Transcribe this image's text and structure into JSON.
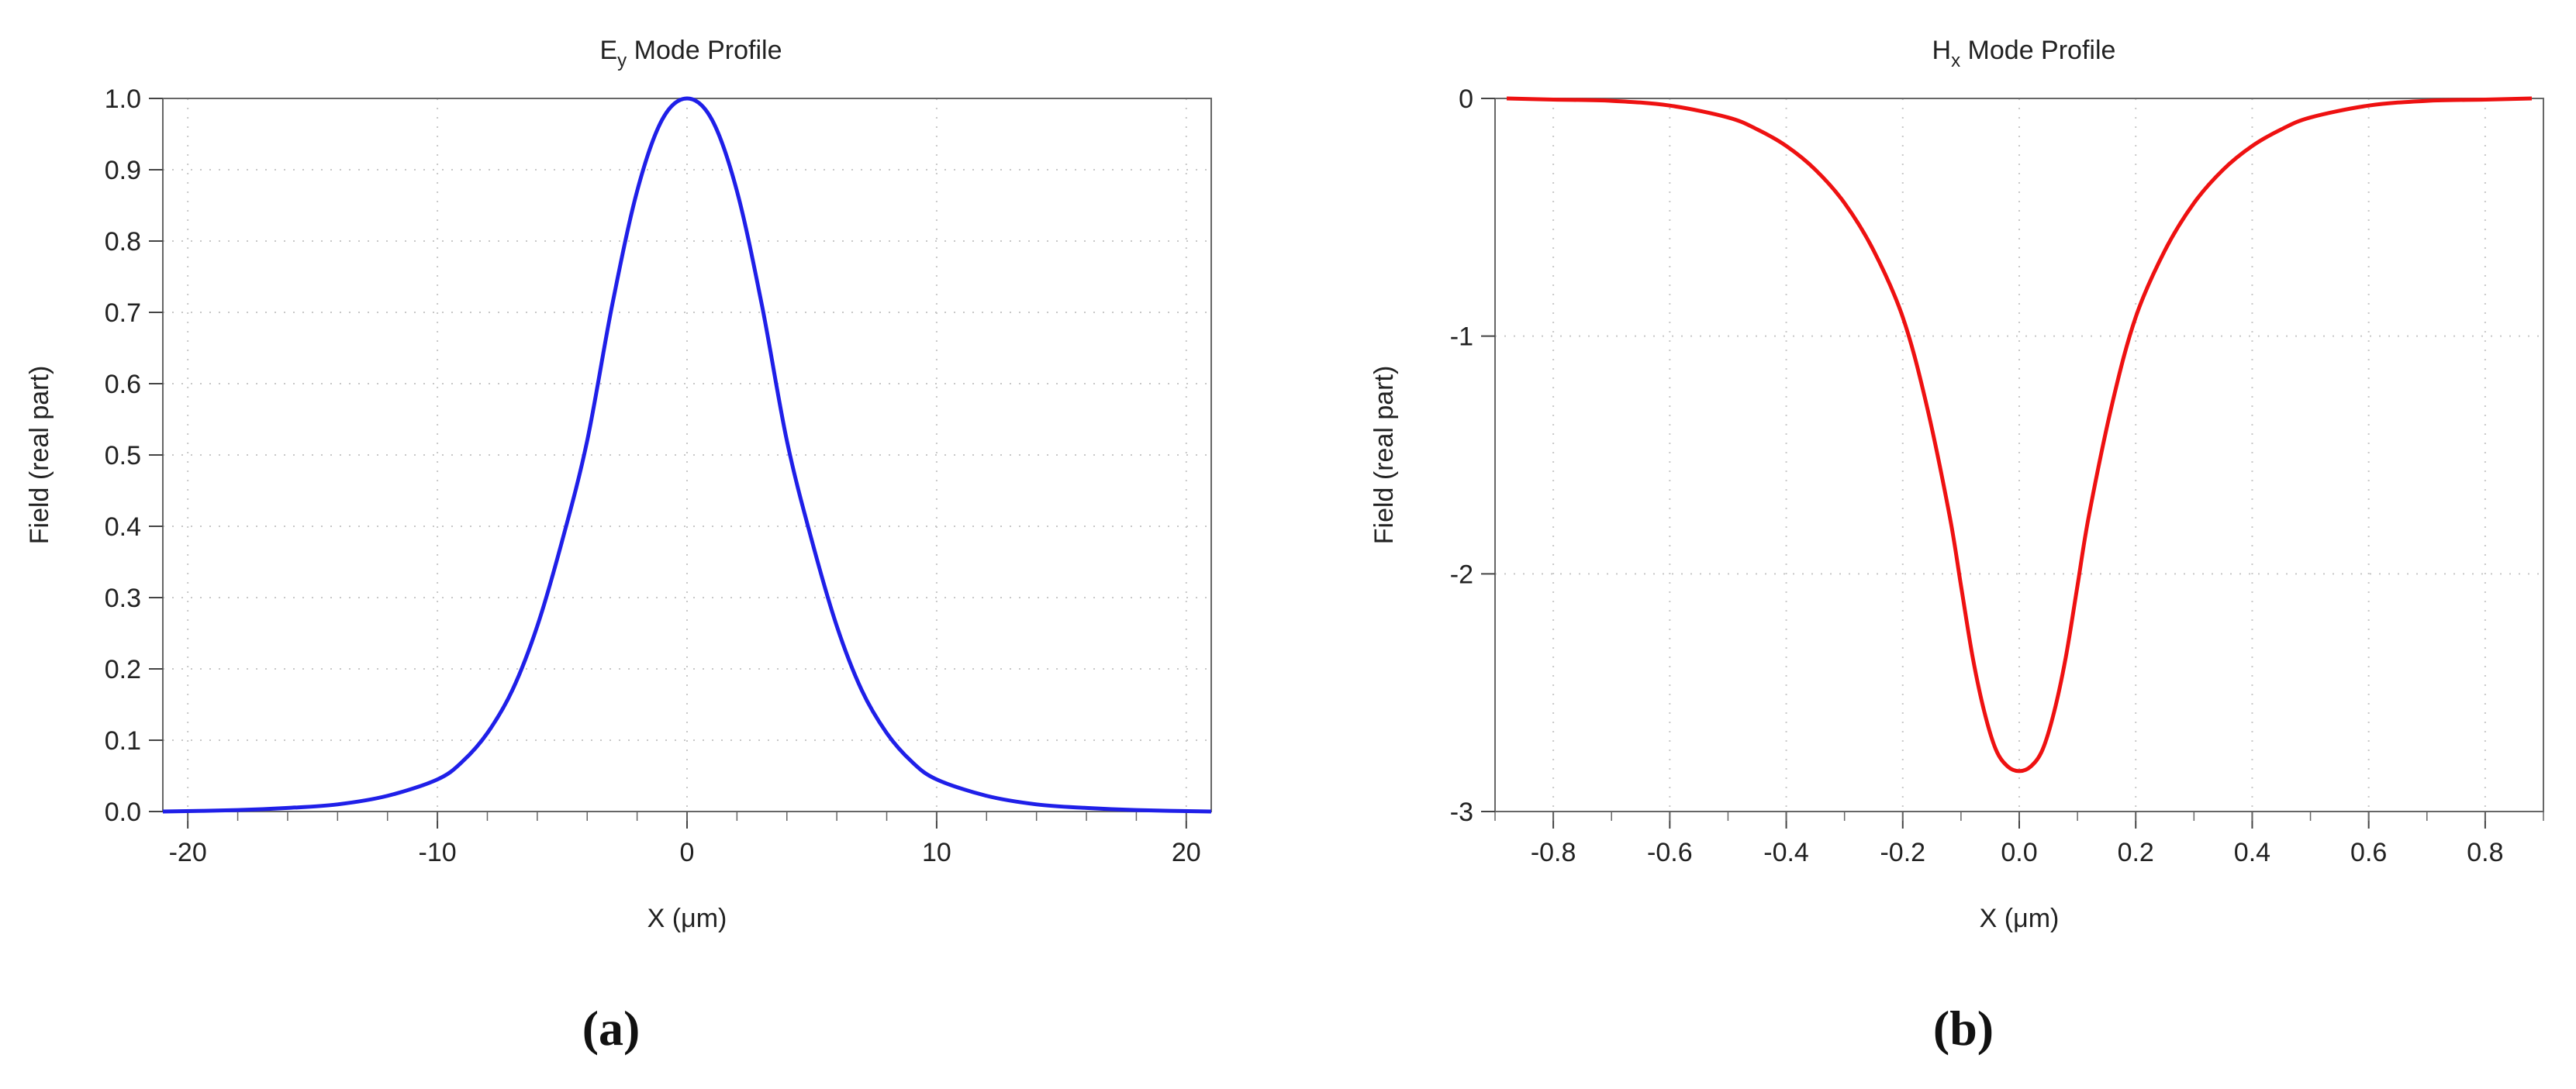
{
  "chart_data": [
    {
      "panel": "(a)",
      "type": "line",
      "title_main": "E",
      "title_sub": "y",
      "title_rest": " Mode Profile",
      "xlabel": "X (μm)",
      "ylabel": "Field (real part)",
      "xlim": [
        -21,
        21
      ],
      "ylim": [
        0,
        1
      ],
      "xticks": [
        -20,
        -10,
        0,
        10,
        20
      ],
      "xtick_labels": [
        "-20",
        "-10",
        "0",
        "10",
        "20"
      ],
      "yticks": [
        0,
        0.1,
        0.2,
        0.3,
        0.4,
        0.5,
        0.6,
        0.7,
        0.8,
        0.9,
        1.0
      ],
      "ytick_labels": [
        "0.0",
        "0.1",
        "0.2",
        "0.3",
        "0.4",
        "0.5",
        "0.6",
        "0.7",
        "0.8",
        "0.9",
        "1.0"
      ],
      "grid": true,
      "color": "#1f1fe8",
      "series": [
        {
          "x": [
            -21,
            -18,
            -16,
            -14,
            -12,
            -10,
            -9,
            -8,
            -7,
            -6,
            -5,
            -4,
            -3,
            -2,
            -1,
            0,
            1,
            2,
            3,
            4,
            5,
            6,
            7,
            8,
            9,
            10,
            12,
            14,
            16,
            18,
            21
          ],
          "y": [
            0.0,
            0.002,
            0.005,
            0.01,
            0.022,
            0.045,
            0.07,
            0.11,
            0.17,
            0.26,
            0.38,
            0.52,
            0.71,
            0.87,
            0.97,
            1.0,
            0.97,
            0.87,
            0.71,
            0.52,
            0.38,
            0.26,
            0.17,
            0.11,
            0.07,
            0.045,
            0.022,
            0.01,
            0.005,
            0.002,
            0.0
          ]
        }
      ]
    },
    {
      "panel": "(b)",
      "type": "line",
      "title_main": "H",
      "title_sub": "x",
      "title_rest": " Mode Profile",
      "xlabel": "X (μm)",
      "ylabel": "Field (real part)",
      "xlim": [
        -0.9,
        0.9
      ],
      "ylim": [
        -3,
        0
      ],
      "xticks": [
        -0.8,
        -0.6,
        -0.4,
        -0.2,
        0.0,
        0.2,
        0.4,
        0.6,
        0.8
      ],
      "xtick_labels": [
        "-0.8",
        "-0.6",
        "-0.4",
        "-0.2",
        "0.0",
        "0.2",
        "0.4",
        "0.6",
        "0.8"
      ],
      "yticks": [
        0,
        -1,
        -2,
        -3
      ],
      "ytick_labels": [
        "0",
        "-1",
        "-2",
        "-3"
      ],
      "grid": true,
      "color": "#ee1111",
      "series": [
        {
          "x": [
            -0.88,
            -0.8,
            -0.7,
            -0.6,
            -0.5,
            -0.45,
            -0.4,
            -0.35,
            -0.3,
            -0.25,
            -0.2,
            -0.16,
            -0.12,
            -0.1,
            -0.08,
            -0.06,
            -0.04,
            -0.02,
            0.0,
            0.02,
            0.04,
            0.06,
            0.08,
            0.1,
            0.12,
            0.16,
            0.2,
            0.25,
            0.3,
            0.35,
            0.4,
            0.45,
            0.5,
            0.6,
            0.7,
            0.8,
            0.88
          ],
          "y": [
            0.0,
            -0.005,
            -0.01,
            -0.03,
            -0.08,
            -0.13,
            -0.2,
            -0.3,
            -0.44,
            -0.64,
            -0.92,
            -1.28,
            -1.75,
            -2.05,
            -2.35,
            -2.58,
            -2.74,
            -2.81,
            -2.83,
            -2.81,
            -2.74,
            -2.58,
            -2.35,
            -2.05,
            -1.75,
            -1.28,
            -0.92,
            -0.64,
            -0.44,
            -0.3,
            -0.2,
            -0.13,
            -0.08,
            -0.03,
            -0.01,
            -0.005,
            0.0
          ]
        }
      ]
    }
  ]
}
